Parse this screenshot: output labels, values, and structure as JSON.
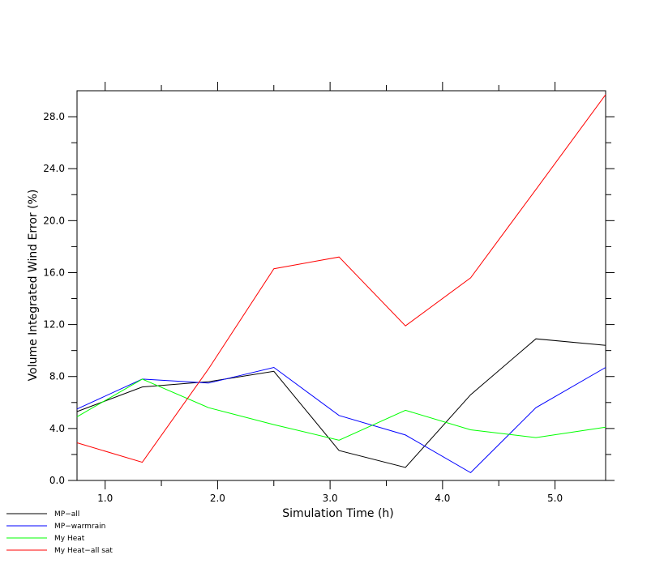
{
  "chart_data": {
    "type": "line",
    "title": "",
    "xlabel": "Simulation Time (h)",
    "ylabel": "Volume Integrated Wind Error (%)",
    "xlim": [
      0.75,
      5.45
    ],
    "ylim": [
      0.0,
      30.0
    ],
    "x_ticks": [
      1.0,
      2.0,
      3.0,
      4.0,
      5.0
    ],
    "x_tick_labels": [
      "1.0",
      "2.0",
      "3.0",
      "4.0",
      "5.0"
    ],
    "y_ticks": [
      0.0,
      4.0,
      8.0,
      12.0,
      16.0,
      20.0,
      24.0,
      28.0
    ],
    "y_tick_labels": [
      "0.0",
      "4.0",
      "8.0",
      "12.0",
      "16.0",
      "20.0",
      "24.0",
      "28.0"
    ],
    "grid": false,
    "legend_position": "bottom-left-outside",
    "x": [
      0.75,
      1.33,
      1.92,
      2.5,
      3.08,
      3.67,
      4.25,
      4.83,
      5.45
    ],
    "series": [
      {
        "name": "MP−all",
        "color": "#000000",
        "values": [
          5.3,
          7.2,
          7.6,
          8.4,
          2.3,
          1.0,
          6.6,
          10.9,
          10.4
        ]
      },
      {
        "name": "MP−warmrain",
        "color": "#0000ff",
        "values": [
          5.5,
          7.8,
          7.5,
          8.7,
          5.0,
          3.5,
          0.6,
          5.6,
          8.7
        ]
      },
      {
        "name": "My Heat",
        "color": "#00ff00",
        "values": [
          4.9,
          7.8,
          5.6,
          4.3,
          3.1,
          5.4,
          3.9,
          3.3,
          4.1
        ]
      },
      {
        "name": "My Heat−all sat",
        "color": "#ff0000",
        "values": [
          2.9,
          1.4,
          8.6,
          16.3,
          17.2,
          11.9,
          15.6,
          22.4,
          29.7
        ]
      }
    ]
  }
}
